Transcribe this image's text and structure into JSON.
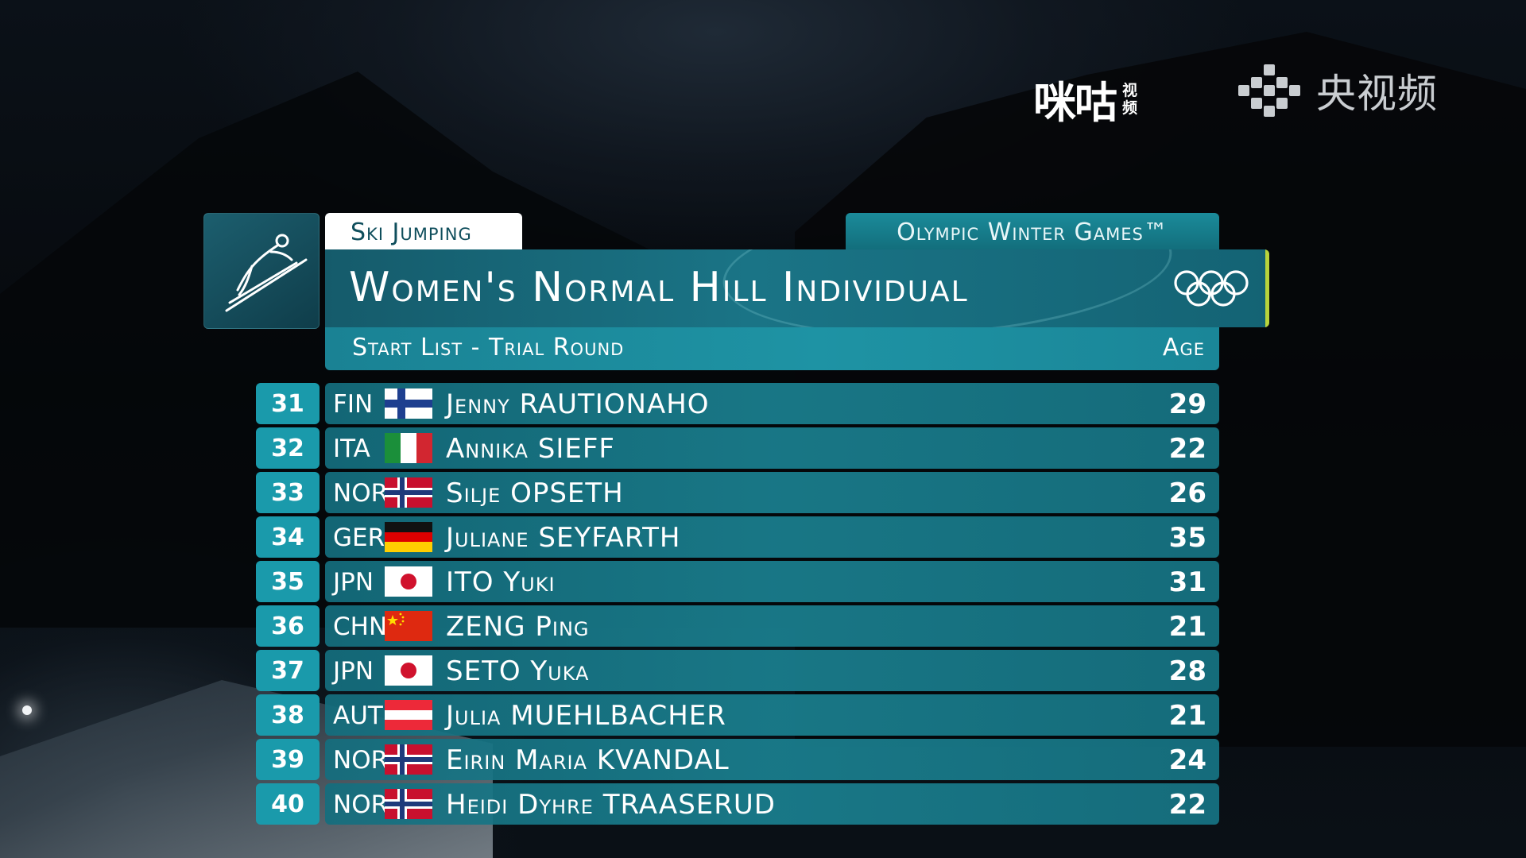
{
  "watermark": {
    "migu_main": "咪咕",
    "migu_sub": "视频",
    "cctv_text": "央视频"
  },
  "header": {
    "sport_tab": "Ski Jumping",
    "games_tab": "Olympic Winter Games™",
    "title": "Women's Normal Hill Individual",
    "subtitle": "Start List - Trial Round",
    "age_label": "Age"
  },
  "colors": {
    "panel_teal": "#1a7486",
    "bib_teal": "#1a9aab",
    "accent_green": "#b8d43c"
  },
  "athletes": [
    {
      "bib": "31",
      "nation": "FIN",
      "flag": "fin-flag",
      "name": "Jenny RAUTIONAHO",
      "age": "29"
    },
    {
      "bib": "32",
      "nation": "ITA",
      "flag": "ita-flag",
      "name": "Annika SIEFF",
      "age": "22"
    },
    {
      "bib": "33",
      "nation": "NOR",
      "flag": "nor-flag",
      "name": "Silje OPSETH",
      "age": "26"
    },
    {
      "bib": "34",
      "nation": "GER",
      "flag": "ger-flag",
      "name": "Juliane SEYFARTH",
      "age": "35"
    },
    {
      "bib": "35",
      "nation": "JPN",
      "flag": "jpn-flag",
      "name": "ITO Yuki",
      "age": "31"
    },
    {
      "bib": "36",
      "nation": "CHN",
      "flag": "chn-flag",
      "name": "ZENG Ping",
      "age": "21"
    },
    {
      "bib": "37",
      "nation": "JPN",
      "flag": "jpn-flag",
      "name": "SETO Yuka",
      "age": "28"
    },
    {
      "bib": "38",
      "nation": "AUT",
      "flag": "aut-flag",
      "name": "Julia MUEHLBACHER",
      "age": "21"
    },
    {
      "bib": "39",
      "nation": "NOR",
      "flag": "nor-flag",
      "name": "Eirin Maria KVANDAL",
      "age": "24"
    },
    {
      "bib": "40",
      "nation": "NOR",
      "flag": "nor-flag",
      "name": "Heidi Dyhre TRAASERUD",
      "age": "22"
    }
  ]
}
